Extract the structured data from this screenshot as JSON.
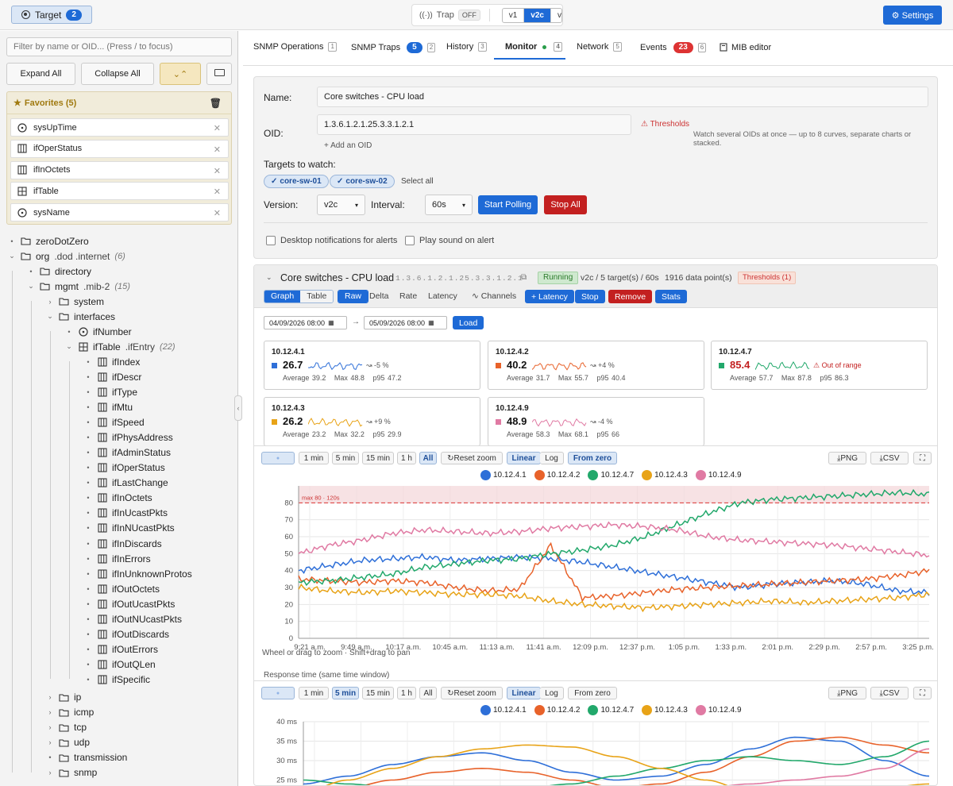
{
  "topbar": {
    "target_label": "Target",
    "target_count": "2",
    "trap_label": "Trap",
    "trap_state": "OFF",
    "versions": [
      "v1",
      "v2c",
      "v3"
    ],
    "active_version": "v2c",
    "settings_label": "Settings"
  },
  "sidebar": {
    "filter_placeholder": "Filter by name or OID... (Press / to focus)",
    "expand_all": "Expand All",
    "collapse_all": "Collapse All",
    "favorites_title": "Favorites (5)",
    "favorites": [
      {
        "name": "sysUpTime",
        "icon": "clock-icon"
      },
      {
        "name": "ifOperStatus",
        "icon": "column-icon"
      },
      {
        "name": "ifInOctets",
        "icon": "column-icon"
      },
      {
        "name": "ifTable",
        "icon": "table-icon"
      },
      {
        "name": "sysName",
        "icon": "clock-icon"
      }
    ],
    "tree": [
      {
        "label": "zeroDotZero",
        "depth": 0,
        "icon": "folder-icon",
        "chev": "bullet"
      },
      {
        "label": "org",
        "suffix": ".dod .internet",
        "count": "(6)",
        "depth": 0,
        "icon": "folder-icon",
        "chev": "open"
      },
      {
        "label": "directory",
        "depth": 1,
        "icon": "folder-icon",
        "chev": "bullet"
      },
      {
        "label": "mgmt",
        "suffix": ".mib-2",
        "count": "(15)",
        "depth": 1,
        "icon": "folder-icon",
        "chev": "open"
      },
      {
        "label": "system",
        "depth": 2,
        "icon": "folder-icon",
        "chev": "closed"
      },
      {
        "label": "interfaces",
        "depth": 2,
        "icon": "folder-icon",
        "chev": "open"
      },
      {
        "label": "ifNumber",
        "depth": 3,
        "icon": "clock-icon",
        "chev": "bullet"
      },
      {
        "label": "ifTable",
        "suffix": ".ifEntry",
        "count": "(22)",
        "depth": 3,
        "icon": "table-icon",
        "chev": "open"
      },
      {
        "label": "ifIndex",
        "depth": 4,
        "icon": "column-icon",
        "chev": "bullet"
      },
      {
        "label": "ifDescr",
        "depth": 4,
        "icon": "column-icon",
        "chev": "bullet"
      },
      {
        "label": "ifType",
        "depth": 4,
        "icon": "column-icon",
        "chev": "bullet"
      },
      {
        "label": "ifMtu",
        "depth": 4,
        "icon": "column-icon",
        "chev": "bullet"
      },
      {
        "label": "ifSpeed",
        "depth": 4,
        "icon": "column-icon",
        "chev": "bullet"
      },
      {
        "label": "ifPhysAddress",
        "depth": 4,
        "icon": "column-icon",
        "chev": "bullet"
      },
      {
        "label": "ifAdminStatus",
        "depth": 4,
        "icon": "column-icon",
        "chev": "bullet"
      },
      {
        "label": "ifOperStatus",
        "depth": 4,
        "icon": "column-icon",
        "chev": "bullet"
      },
      {
        "label": "ifLastChange",
        "depth": 4,
        "icon": "column-icon",
        "chev": "bullet"
      },
      {
        "label": "ifInOctets",
        "depth": 4,
        "icon": "column-icon",
        "chev": "bullet"
      },
      {
        "label": "ifInUcastPkts",
        "depth": 4,
        "icon": "column-icon",
        "chev": "bullet"
      },
      {
        "label": "ifInNUcastPkts",
        "depth": 4,
        "icon": "column-icon",
        "chev": "bullet"
      },
      {
        "label": "ifInDiscards",
        "depth": 4,
        "icon": "column-icon",
        "chev": "bullet"
      },
      {
        "label": "ifInErrors",
        "depth": 4,
        "icon": "column-icon",
        "chev": "bullet"
      },
      {
        "label": "ifInUnknownProtos",
        "depth": 4,
        "icon": "column-icon",
        "chev": "bullet"
      },
      {
        "label": "ifOutOctets",
        "depth": 4,
        "icon": "column-icon",
        "chev": "bullet"
      },
      {
        "label": "ifOutUcastPkts",
        "depth": 4,
        "icon": "column-icon",
        "chev": "bullet"
      },
      {
        "label": "ifOutNUcastPkts",
        "depth": 4,
        "icon": "column-icon",
        "chev": "bullet"
      },
      {
        "label": "ifOutDiscards",
        "depth": 4,
        "icon": "column-icon",
        "chev": "bullet"
      },
      {
        "label": "ifOutErrors",
        "depth": 4,
        "icon": "column-icon",
        "chev": "bullet"
      },
      {
        "label": "ifOutQLen",
        "depth": 4,
        "icon": "column-icon",
        "chev": "bullet"
      },
      {
        "label": "ifSpecific",
        "depth": 4,
        "icon": "column-icon",
        "chev": "bullet"
      },
      {
        "label": "ip",
        "depth": 2,
        "icon": "folder-icon",
        "chev": "closed",
        "gap": true
      },
      {
        "label": "icmp",
        "depth": 2,
        "icon": "folder-icon",
        "chev": "closed"
      },
      {
        "label": "tcp",
        "depth": 2,
        "icon": "folder-icon",
        "chev": "closed"
      },
      {
        "label": "udp",
        "depth": 2,
        "icon": "folder-icon",
        "chev": "closed"
      },
      {
        "label": "transmission",
        "depth": 2,
        "icon": "folder-icon",
        "chev": "bullet"
      },
      {
        "label": "snmp",
        "depth": 2,
        "icon": "folder-icon",
        "chev": "closed"
      }
    ]
  },
  "tabs": [
    {
      "label": "SNMP Operations",
      "key": "1"
    },
    {
      "label": "SNMP Traps",
      "badge": "5",
      "key": "2"
    },
    {
      "label": "History",
      "key": "3"
    },
    {
      "label": "Monitor",
      "dot": true,
      "key": "4",
      "active": true
    },
    {
      "label": "Network",
      "key": "5"
    },
    {
      "label": "Events",
      "badge": "23",
      "key": "6"
    },
    {
      "label": "MIB editor",
      "icon": "book-icon"
    }
  ],
  "form": {
    "name_label": "Name:",
    "name_value": "Core switches - CPU load",
    "oid_label": "OID:",
    "oid_value": "1.3.6.1.2.1.25.3.3.1.2.1",
    "thresholds_link": "Thresholds",
    "add_oid": "+ Add an OID",
    "oid_hint": "Watch several OIDs at once — up to 8 curves, separate charts or stacked.",
    "targets_label": "Targets to watch:",
    "targets": [
      "core-sw-01",
      "core-sw-02"
    ],
    "select_all": "Select all",
    "version_label": "Version:",
    "version_value": "v2c",
    "interval_label": "Interval:",
    "interval_value": "60s",
    "start_polling": "Start Polling",
    "stop_all": "Stop All",
    "desktop_notif": "Desktop notifications for alerts",
    "play_sound": "Play sound on alert"
  },
  "monitor": {
    "title": "Core switches - CPU load",
    "oid": "1.3.6.1.2.1.25.3.3.1.2.1",
    "status": "Running",
    "summary": "v2c / 5 target(s) / 60s",
    "points": "1916 data point(s)",
    "thresholds": "Thresholds (1)",
    "view_tabs": [
      "Graph",
      "Table"
    ],
    "mode_raw": "Raw",
    "mode_others": [
      "Delta",
      "Rate",
      "Latency"
    ],
    "channels": "Channels",
    "latency_btn": "+ Latency",
    "stop_btn": "Stop",
    "remove_btn": "Remove",
    "stats_btn": "Stats",
    "date_from": "04/09/2026 08:00",
    "date_to": "05/09/2026 08:00",
    "load_btn": "Load",
    "cards": [
      {
        "ip": "10.12.4.1",
        "value": "26.7",
        "trend": "-5 %",
        "avg": "Average 39.2",
        "max": "Max 48.8",
        "p95": "p95 47.2",
        "color": "#2e6fd8"
      },
      {
        "ip": "10.12.4.2",
        "value": "40.2",
        "trend": "+4 %",
        "avg": "Average 31.7",
        "max": "Max 55.7",
        "p95": "p95 40.4",
        "color": "#e8622a"
      },
      {
        "ip": "10.12.4.7",
        "value": "85.4",
        "trend": "Out of range",
        "avg": "Average 57.7",
        "max": "Max 87.8",
        "p95": "p95 86.3",
        "color": "#22a86b",
        "alert": true
      },
      {
        "ip": "10.12.4.3",
        "value": "26.2",
        "trend": "+9 %",
        "avg": "Average 23.2",
        "max": "Max 32.2",
        "p95": "p95 29.9",
        "color": "#e8a317"
      },
      {
        "ip": "10.12.4.9",
        "value": "48.9",
        "trend": "-4 %",
        "avg": "Average 58.3",
        "max": "Max 68.1",
        "p95": "p95 66",
        "color": "#e07aa3"
      }
    ],
    "toolbar1": {
      "live": "LIVE",
      "ranges": [
        "1 min",
        "5 min",
        "15 min",
        "1 h",
        "All"
      ],
      "active_range": "All",
      "reset": "Reset zoom",
      "linear": "Linear",
      "log": "Log",
      "from_zero": "From zero",
      "png": "PNG",
      "csv": "CSV"
    },
    "toolbar2": {
      "live": "LIVE",
      "ranges": [
        "1 min",
        "5 min",
        "15 min",
        "1 h",
        "All"
      ],
      "active_range": "5 min",
      "reset": "Reset zoom",
      "linear": "Linear",
      "log": "Log",
      "from_zero": "From zero",
      "png": "PNG",
      "csv": "CSV"
    },
    "zoom_hint": "Wheel or drag to zoom · Shift+drag to pan",
    "response_title": "Response time (same time window)"
  },
  "chart_data": [
    {
      "type": "line",
      "ylim": [
        0,
        90
      ],
      "yticks": [
        0,
        10,
        20,
        30,
        40,
        50,
        60,
        70,
        80
      ],
      "xticks": [
        "9:21 a.m.",
        "9:49 a.m.",
        "10:17 a.m.",
        "10:45 a.m.",
        "11:13 a.m.",
        "11:41 a.m.",
        "12:09 p.m.",
        "12:37 p.m.",
        "1:05 p.m.",
        "1:33 p.m.",
        "2:01 p.m.",
        "2:29 p.m.",
        "2:57 p.m.",
        "3:25 p.m."
      ],
      "threshold": {
        "value": 80,
        "label": "max 80 · 120s"
      },
      "legend": "top-center",
      "grid": true,
      "series": [
        {
          "name": "10.12.4.1",
          "color": "#2e6fd8",
          "values": [
            40,
            43,
            46,
            47,
            48,
            46,
            47,
            48,
            47,
            45,
            42,
            39,
            36,
            33,
            30,
            32,
            33,
            34,
            32,
            28,
            27
          ]
        },
        {
          "name": "10.12.4.2",
          "color": "#e8622a",
          "values": [
            35,
            34,
            33,
            34,
            33,
            30,
            28,
            29,
            55,
            24,
            25,
            27,
            29,
            30,
            31,
            32,
            33,
            34,
            35,
            37,
            40
          ]
        },
        {
          "name": "10.12.4.7",
          "color": "#22a86b",
          "values": [
            33,
            34,
            36,
            38,
            42,
            44,
            46,
            47,
            50,
            52,
            55,
            60,
            67,
            74,
            80,
            82,
            83,
            84,
            85,
            86,
            85
          ]
        },
        {
          "name": "10.12.4.3",
          "color": "#e8a317",
          "values": [
            30,
            28,
            27,
            28,
            27,
            26,
            26,
            25,
            22,
            20,
            19,
            18,
            19,
            20,
            21,
            22,
            21,
            22,
            23,
            24,
            26
          ]
        },
        {
          "name": "10.12.4.9",
          "color": "#e07aa3",
          "values": [
            50,
            55,
            58,
            62,
            64,
            63,
            62,
            63,
            65,
            66,
            67,
            66,
            64,
            60,
            58,
            57,
            56,
            55,
            53,
            51,
            49
          ]
        }
      ]
    },
    {
      "type": "line",
      "ylim": [
        0,
        40
      ],
      "yticks": [
        "25 ms",
        "30 ms",
        "35 ms",
        "40 ms"
      ],
      "legend": "top-center",
      "grid": true,
      "series": [
        {
          "name": "10.12.4.1",
          "color": "#2e6fd8",
          "values": [
            24,
            26,
            29,
            31,
            32,
            30,
            27,
            25,
            26,
            29,
            33,
            36,
            35,
            30,
            26
          ]
        },
        {
          "name": "10.12.4.2",
          "color": "#e8622a",
          "values": [
            21,
            23,
            25,
            27,
            28,
            27,
            25,
            23,
            24,
            27,
            31,
            35,
            36,
            34,
            32
          ]
        },
        {
          "name": "10.12.4.7",
          "color": "#22a86b",
          "values": [
            25,
            24,
            23,
            22,
            22,
            23,
            24,
            26,
            28,
            30,
            31,
            30,
            29,
            31,
            35
          ]
        },
        {
          "name": "10.12.4.3",
          "color": "#e8a317",
          "values": [
            22,
            25,
            28,
            31,
            33,
            34,
            33.5,
            31,
            28,
            25,
            22,
            20,
            21,
            23,
            24
          ]
        },
        {
          "name": "10.12.4.9",
          "color": "#e07aa3",
          "values": [
            20,
            19,
            18,
            17,
            17,
            18,
            20,
            21,
            22,
            23,
            24,
            25,
            26,
            28,
            33
          ]
        }
      ]
    }
  ]
}
